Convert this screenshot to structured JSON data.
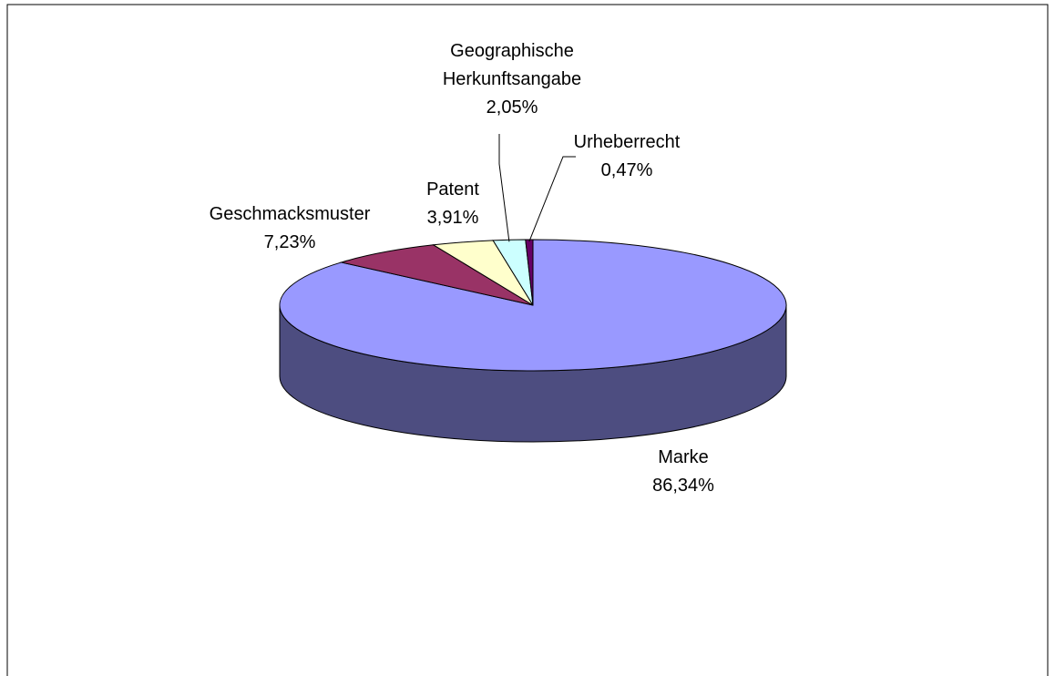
{
  "chart_data": {
    "type": "pie3d",
    "categories": [
      "Marke",
      "Geschmacksmuster",
      "Patent",
      "Geographische Herkunftsangabe",
      "Urheberrecht"
    ],
    "values": [
      86.34,
      7.23,
      3.91,
      2.05,
      0.47
    ],
    "value_labels": [
      "86,34%",
      "7,23%",
      "3,91%",
      "2,05%",
      "0,47%"
    ],
    "colors": [
      "#9999ff",
      "#993366",
      "#ffffcc",
      "#ccffff",
      "#660066"
    ]
  }
}
